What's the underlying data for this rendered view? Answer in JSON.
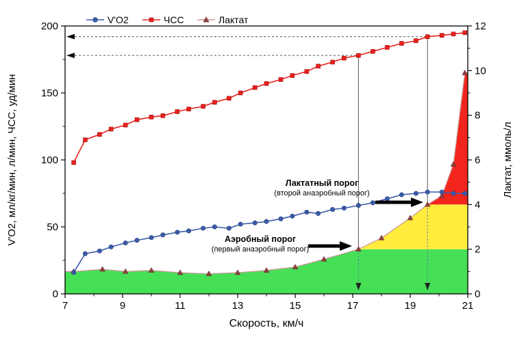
{
  "chart_data": {
    "type": "line",
    "xlabel": "Скорость, км/ч",
    "ylabel_left": "V'O2, мл/кг/мин, л/мин, ЧСС, уд/мин",
    "ylabel_right": "Лактат, ммоль/л",
    "x_range": [
      7,
      21
    ],
    "y_left_range": [
      0,
      200
    ],
    "y_right_range": [
      0,
      12
    ],
    "x_ticks": [
      7,
      9,
      11,
      13,
      15,
      17,
      19,
      21
    ],
    "x_minor_ticks": [
      8,
      10,
      12,
      14,
      16,
      18,
      20
    ],
    "y_left_ticks": [
      0,
      50,
      100,
      150,
      200
    ],
    "y_left_minor_ticks": [
      25,
      75,
      125,
      175
    ],
    "y_right_ticks": [
      0,
      2,
      4,
      6,
      8,
      10,
      12
    ],
    "y_right_minor_ticks": [
      1,
      3,
      5,
      7,
      9,
      11
    ],
    "legend": [
      {
        "label": "V'O2",
        "marker": "circle"
      },
      {
        "label": "ЧСС",
        "marker": "square"
      },
      {
        "label": "Лактат",
        "marker": "triangle"
      }
    ],
    "series": {
      "vo2": {
        "name": "V'O2",
        "axis": "left",
        "points": [
          [
            7.3,
            16
          ],
          [
            7.7,
            30
          ],
          [
            8.2,
            32
          ],
          [
            8.6,
            35
          ],
          [
            9.1,
            38
          ],
          [
            9.5,
            40
          ],
          [
            10,
            42
          ],
          [
            10.4,
            44
          ],
          [
            10.9,
            46
          ],
          [
            11.3,
            47
          ],
          [
            11.8,
            49
          ],
          [
            12.2,
            50
          ],
          [
            12.7,
            49
          ],
          [
            13.1,
            52
          ],
          [
            13.6,
            53
          ],
          [
            14,
            54
          ],
          [
            14.5,
            56
          ],
          [
            14.9,
            58
          ],
          [
            15.4,
            61
          ],
          [
            15.8,
            60
          ],
          [
            16.3,
            63
          ],
          [
            16.7,
            64
          ],
          [
            17.2,
            66
          ],
          [
            17.7,
            68
          ],
          [
            18.2,
            71
          ],
          [
            18.7,
            74
          ],
          [
            19.2,
            75
          ],
          [
            19.6,
            76
          ],
          [
            20.1,
            76
          ],
          [
            20.5,
            75
          ],
          [
            20.9,
            75
          ]
        ]
      },
      "chss": {
        "name": "ЧСС",
        "axis": "left",
        "points": [
          [
            7.3,
            98
          ],
          [
            7.7,
            115
          ],
          [
            8.2,
            119
          ],
          [
            8.6,
            123
          ],
          [
            9.1,
            126
          ],
          [
            9.5,
            130
          ],
          [
            10,
            132
          ],
          [
            10.4,
            133
          ],
          [
            10.9,
            136
          ],
          [
            11.3,
            138
          ],
          [
            11.8,
            140
          ],
          [
            12.2,
            143
          ],
          [
            12.7,
            146
          ],
          [
            13.1,
            150
          ],
          [
            13.6,
            154
          ],
          [
            14,
            157
          ],
          [
            14.5,
            160
          ],
          [
            14.9,
            163
          ],
          [
            15.4,
            166
          ],
          [
            15.8,
            170
          ],
          [
            16.3,
            173
          ],
          [
            16.7,
            176
          ],
          [
            17.2,
            178
          ],
          [
            17.7,
            181
          ],
          [
            18.2,
            184
          ],
          [
            18.7,
            187
          ],
          [
            19.2,
            189
          ],
          [
            19.6,
            192
          ],
          [
            20.1,
            193
          ],
          [
            20.5,
            194
          ],
          [
            20.9,
            195
          ]
        ]
      },
      "lactate": {
        "name": "Лактат",
        "axis": "right",
        "points": [
          [
            7.3,
            1
          ],
          [
            8.3,
            1.1
          ],
          [
            9.1,
            1
          ],
          [
            10,
            1.05
          ],
          [
            11,
            0.95
          ],
          [
            12,
            0.9
          ],
          [
            13,
            0.95
          ],
          [
            14,
            1.05
          ],
          [
            15,
            1.2
          ],
          [
            16,
            1.55
          ],
          [
            17.2,
            2
          ],
          [
            18,
            2.5
          ],
          [
            19,
            3.4
          ],
          [
            19.6,
            4
          ],
          [
            20.1,
            4.4
          ],
          [
            20.5,
            5.8
          ],
          [
            20.9,
            9.9
          ]
        ]
      }
    },
    "zones": {
      "aerobic_boundary_mmol": 2,
      "anaerobic_boundary_mmol": 4
    },
    "thresholds": {
      "aerobic": {
        "speed_kmh": 17.2,
        "hr": 178
      },
      "anaerobic": {
        "speed_kmh": 19.6,
        "hr": 192
      }
    },
    "annotations": {
      "lactate_threshold": {
        "title": "Лактатный порог",
        "subtitle": "(второй анаэробный порог)"
      },
      "aerobic_threshold": {
        "title": "Аэробный порог",
        "subtitle": "(первый анаэробный порог)"
      }
    },
    "colors": {
      "vo2": "#3b5bab",
      "vo2_edge": "#263f78",
      "chss": "#e8211d",
      "chss_edge": "#a21212",
      "lactate_line": "#cc9999",
      "lactate_marker": "#8e4040",
      "lactate_edge": "#6b2f2f",
      "zone_green": "#46e056",
      "zone_yellow": "#ffec3d",
      "zone_red": "#f3261d",
      "threshold_line": "#555555",
      "threshold_dotted": "#5577bb"
    }
  }
}
